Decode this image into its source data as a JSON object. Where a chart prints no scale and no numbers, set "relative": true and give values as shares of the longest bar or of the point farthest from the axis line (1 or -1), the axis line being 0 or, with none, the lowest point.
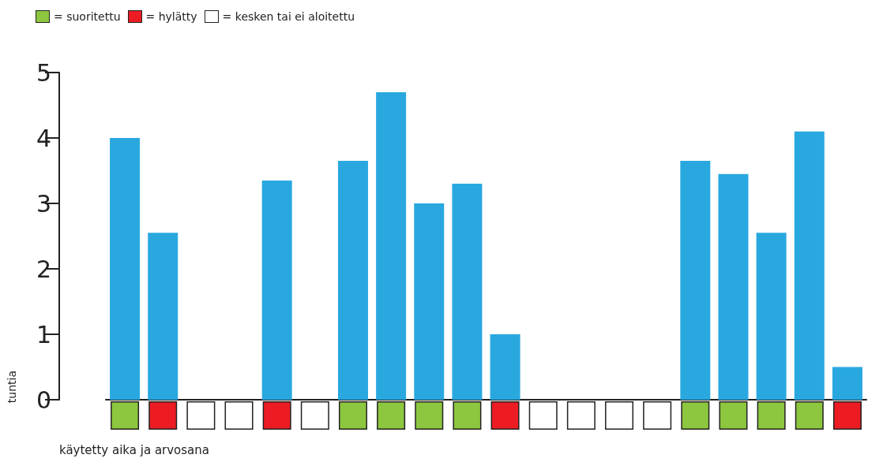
{
  "chart_data": [
    {
      "type": "bar",
      "categories": [
        null,
        null,
        null,
        null,
        null,
        null,
        null,
        null,
        null,
        null,
        null,
        null,
        null,
        null,
        null,
        null,
        null,
        null,
        null,
        null
      ],
      "values": [
        4,
        2.55,
        0,
        0,
        3.35,
        0,
        3.65,
        4.7,
        3,
        3.3,
        1,
        0,
        0,
        0,
        0,
        3.65,
        3.45,
        2.55,
        4.1,
        0.5
      ],
      "color": "#29a8e0",
      "ylim": [
        0,
        5
      ],
      "yticks": [
        0,
        1,
        2,
        3,
        4,
        5
      ],
      "grid": false,
      "ylabel": "tuntia",
      "xlabel": "käytetty aika ja arvosana"
    },
    {
      "type": "bar",
      "relative": true,
      "categories": [
        null,
        null,
        null,
        null,
        null,
        null,
        null,
        null,
        null,
        null,
        null,
        null,
        null,
        null,
        null,
        null,
        null,
        null,
        null,
        null
      ],
      "values": [
        1,
        1,
        1,
        1,
        1,
        1,
        1,
        1,
        1,
        1,
        1,
        1,
        1,
        1,
        1,
        1,
        1,
        1,
        1,
        1
      ],
      "colors": [
        "#8dc63f",
        "#ed1c24",
        "#ffffff",
        "#ffffff",
        "#ed1c24",
        "#ffffff",
        "#8dc63f",
        "#8dc63f",
        "#8dc63f",
        "#8dc63f",
        "#ed1c24",
        "#ffffff",
        "#ffffff",
        "#ffffff",
        "#ffffff",
        "#8dc63f",
        "#8dc63f",
        "#8dc63f",
        "#8dc63f",
        "#ed1c24"
      ],
      "annotations": [
        "= suoritettu",
        "= hylätty",
        "= kesken tai ei aloitettu"
      ]
    }
  ]
}
